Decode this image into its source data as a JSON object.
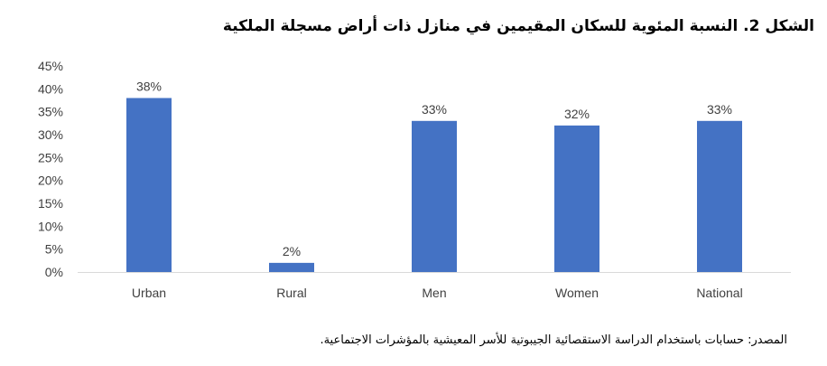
{
  "title": "الشكل 2. النسبة المئوية للسكان المقيمين في منازل ذات أراض مسجلة الملكية",
  "source": "المصدر: حسابات باستخدام الدراسة الاستقصائية الجيبوتية للأسر المعيشية بالمؤشرات الاجتماعية.",
  "chart_data": {
    "type": "bar",
    "categories": [
      "Urban",
      "Rural",
      "Men",
      "Women",
      "National"
    ],
    "values": [
      38,
      2,
      33,
      32,
      33
    ],
    "data_labels": [
      "38%",
      "2%",
      "33%",
      "32%",
      "33%"
    ],
    "ylim": [
      0,
      45
    ],
    "yticks": [
      0,
      5,
      10,
      15,
      20,
      25,
      30,
      35,
      40,
      45
    ],
    "ytick_labels": [
      "0%",
      "5%",
      "10%",
      "15%",
      "20%",
      "25%",
      "30%",
      "35%",
      "40%",
      "45%"
    ],
    "xlabel": "",
    "ylabel": "",
    "grid": false,
    "bar_color": "#4472C4"
  }
}
